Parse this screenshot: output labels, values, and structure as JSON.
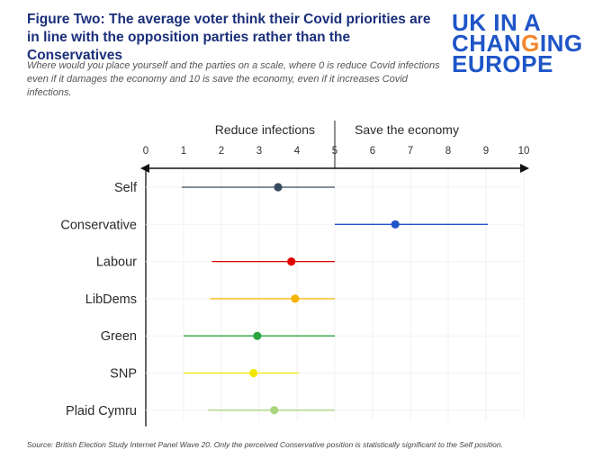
{
  "title": "Figure Two: The average voter think their Covid priorities are in line with the opposition parties rather than the Conservatives",
  "subtitle": "Where would you place yourself and the parties on a scale, where 0 is reduce Covid infections even if it damages the economy and 10 is save the economy, even if it increases Covid infections.",
  "logo": {
    "line1": "UK IN A",
    "line2a": "CHAN",
    "line2b": "G",
    "line2c": "ING",
    "line3": "EUROPE",
    "accent_color": "#f2872e",
    "color": "#1f55c8"
  },
  "source": "Source: British Election Study Internet Panel Wave 20. Only the perceived Conservative position is statistically significant to the Self position.",
  "chart_data": {
    "type": "dot-range",
    "xlim": [
      0,
      10
    ],
    "ticks": [
      0,
      1,
      2,
      3,
      4,
      5,
      6,
      7,
      8,
      9,
      10
    ],
    "axis_annotations": {
      "left": "Reduce infections",
      "right": "Save the economy",
      "divider": 5
    },
    "grid": true,
    "series": [
      {
        "label": "Self",
        "low": 0.95,
        "value": 3.5,
        "high": 5.0,
        "color": "#3a4a5e"
      },
      {
        "label": "Conservative",
        "low": 5.0,
        "value": 6.6,
        "high": 9.05,
        "color": "#1f55c8"
      },
      {
        "label": "Labour",
        "low": 1.75,
        "value": 3.85,
        "high": 5.0,
        "color": "#e00000"
      },
      {
        "label": "LibDems",
        "low": 1.7,
        "value": 3.95,
        "high": 5.0,
        "color": "#f4b400"
      },
      {
        "label": "Green",
        "low": 1.0,
        "value": 2.95,
        "high": 5.0,
        "color": "#2aa640"
      },
      {
        "label": "SNP",
        "low": 1.0,
        "value": 2.85,
        "high": 4.05,
        "color": "#f2e600"
      },
      {
        "label": "Plaid Cymru",
        "low": 1.65,
        "value": 3.4,
        "high": 5.0,
        "color": "#a7d67e"
      }
    ]
  }
}
